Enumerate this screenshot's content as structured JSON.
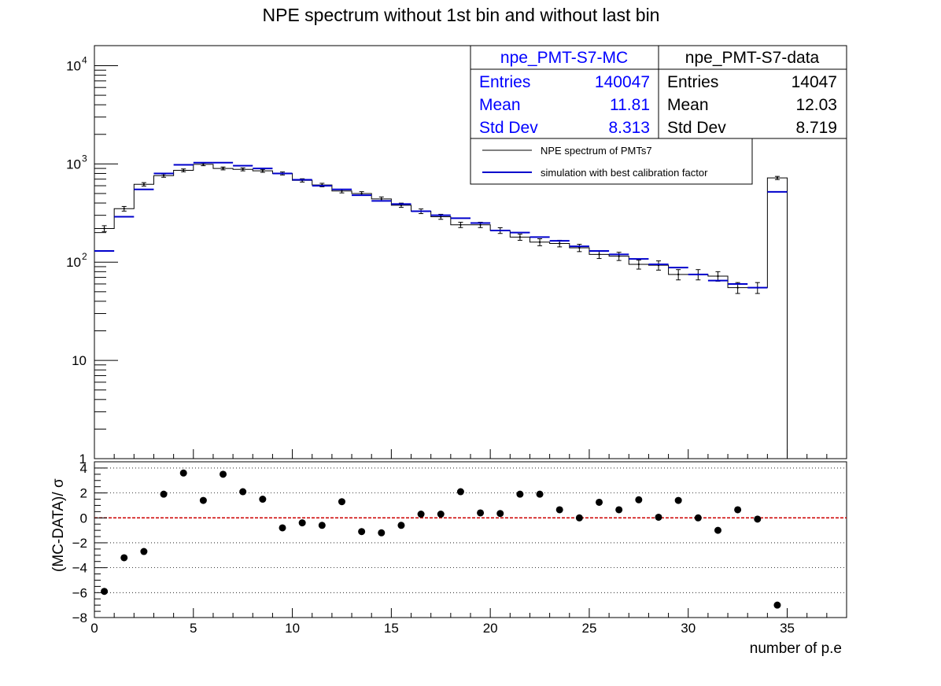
{
  "title": "NPE spectrum without 1st bin and without last bin",
  "colors": {
    "mc": "#0000cc",
    "data": "#000000",
    "zero_line": "#cc0000",
    "stats_mc_text": "#0000ff"
  },
  "stats": {
    "mc": {
      "name": "npe_PMT-S7-MC",
      "entries_label": "Entries",
      "entries": "140047",
      "mean_label": "Mean",
      "mean": "11.81",
      "std_label": "Std Dev",
      "std": "8.313"
    },
    "data": {
      "name": "npe_PMT-S7-data",
      "entries_label": "Entries",
      "entries": "14047",
      "mean_label": "Mean",
      "mean": "12.03",
      "std_label": "Std Dev",
      "std": "8.719"
    }
  },
  "legend": {
    "data_label": "NPE spectrum of PMTs7",
    "mc_label": "simulation with best calibration factor"
  },
  "chart_data": [
    {
      "type": "line",
      "subtype": "histogram",
      "title": "NPE spectrum without 1st bin and without last bin",
      "xlim": [
        0,
        38
      ],
      "ylim": [
        1,
        16000
      ],
      "yscale": "log",
      "yticks": [
        {
          "value": 1,
          "label": "1"
        },
        {
          "value": 10,
          "label": "10"
        },
        {
          "value": 100,
          "label": "10",
          "exp": "2"
        },
        {
          "value": 1000,
          "label": "10",
          "exp": "3"
        },
        {
          "value": 10000,
          "label": "10",
          "exp": "4"
        }
      ],
      "bin_edges": [
        0,
        1,
        2,
        3,
        4,
        5,
        6,
        7,
        8,
        9,
        10,
        11,
        12,
        13,
        14,
        15,
        16,
        17,
        18,
        19,
        20,
        21,
        22,
        23,
        24,
        25,
        26,
        27,
        28,
        29,
        30,
        31,
        32,
        33,
        34,
        35
      ],
      "series": [
        {
          "name": "NPE spectrum of PMTs7",
          "values": [
            220,
            350,
            620,
            760,
            860,
            990,
            900,
            880,
            850,
            800,
            680,
            610,
            530,
            500,
            440,
            380,
            330,
            290,
            240,
            240,
            210,
            180,
            160,
            155,
            140,
            120,
            115,
            95,
            93,
            75,
            75,
            72,
            55,
            55,
            720
          ],
          "errors": [
            15,
            19,
            25,
            28,
            29,
            31,
            30,
            30,
            29,
            28,
            26,
            25,
            23,
            22,
            21,
            19,
            18,
            17,
            15,
            15,
            14,
            13,
            13,
            12,
            12,
            11,
            11,
            10,
            10,
            9,
            9,
            8,
            7,
            7,
            27
          ]
        },
        {
          "name": "simulation with best calibration factor",
          "values": [
            130,
            290,
            550,
            800,
            980,
            1030,
            1030,
            960,
            900,
            800,
            690,
            600,
            550,
            480,
            420,
            390,
            330,
            300,
            280,
            250,
            210,
            200,
            180,
            165,
            145,
            130,
            120,
            108,
            95,
            88,
            75,
            65,
            60,
            55,
            520
          ]
        }
      ]
    },
    {
      "type": "scatter",
      "ylabel": "(MC-DATA)/ σ",
      "xlabel": "number of p.e",
      "xlim": [
        0,
        38
      ],
      "ylim": [
        -8,
        4.5
      ],
      "xticks": [
        0,
        5,
        10,
        15,
        20,
        25,
        30,
        35
      ],
      "yticks": [
        -8,
        -6,
        -4,
        -2,
        0,
        2,
        4
      ],
      "grid": "horizontal dotted",
      "x": [
        0.5,
        1.5,
        2.5,
        3.5,
        4.5,
        5.5,
        6.5,
        7.5,
        8.5,
        9.5,
        10.5,
        11.5,
        12.5,
        13.5,
        14.5,
        15.5,
        16.5,
        17.5,
        18.5,
        19.5,
        20.5,
        21.5,
        22.5,
        23.5,
        24.5,
        25.5,
        26.5,
        27.5,
        28.5,
        29.5,
        30.5,
        31.5,
        32.5,
        33.5,
        34.5
      ],
      "y": [
        -5.9,
        -3.2,
        -2.7,
        1.9,
        3.6,
        1.4,
        3.5,
        2.1,
        1.5,
        -0.8,
        -0.4,
        -0.6,
        1.3,
        -1.1,
        -1.2,
        -0.6,
        0.3,
        0.3,
        2.1,
        0.4,
        0.35,
        1.9,
        1.9,
        0.65,
        0.0,
        1.25,
        0.65,
        1.45,
        0.05,
        1.4,
        0.0,
        -1.0,
        0.65,
        -0.1,
        -7.0
      ]
    }
  ]
}
